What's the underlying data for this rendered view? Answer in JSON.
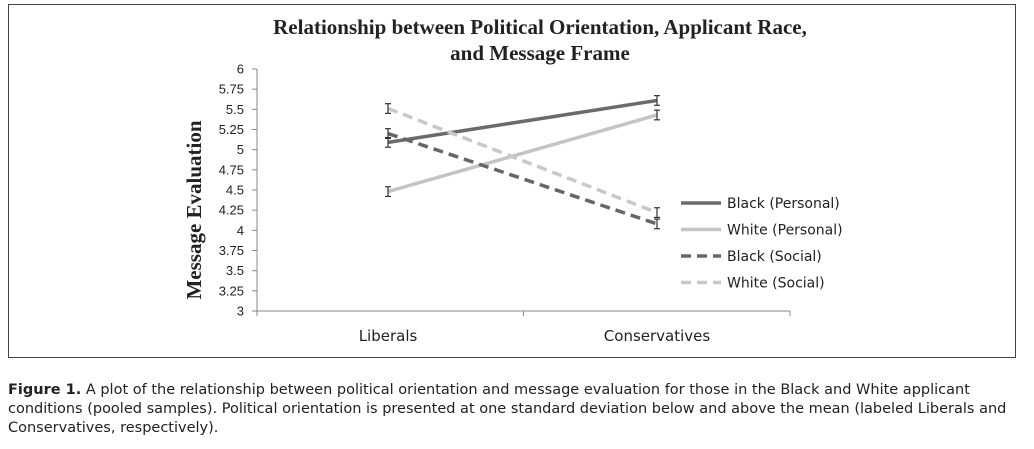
{
  "chart_data": {
    "type": "line",
    "title_lines": [
      "Relationship between Political Orientation, Applicant Race,",
      "and Message Frame"
    ],
    "ylabel": "Message Evaluation",
    "xlabel": "",
    "categories": [
      "Liberals",
      "Conservatives"
    ],
    "ylim": [
      3,
      6
    ],
    "yticks": [
      "3",
      "3.25",
      "3.5",
      "3.75",
      "4",
      "4.25",
      "4.5",
      "4.75",
      "5",
      "5.25",
      "5.5",
      "5.75",
      "6"
    ],
    "grid": false,
    "legend_position": "right",
    "series": [
      {
        "name": "Black (Personal)",
        "values": [
          5.09,
          5.61
        ],
        "errors": [
          0.06,
          0.06
        ],
        "color": "#6b6b6b",
        "dashed": false
      },
      {
        "name": "White (Personal)",
        "values": [
          4.48,
          5.43
        ],
        "errors": [
          0.06,
          0.06
        ],
        "color": "#c4c4c4",
        "dashed": false
      },
      {
        "name": "Black (Social)",
        "values": [
          5.2,
          4.08
        ],
        "errors": [
          0.06,
          0.06
        ],
        "color": "#666666",
        "dashed": true
      },
      {
        "name": "White (Social)",
        "values": [
          5.51,
          4.22
        ],
        "errors": [
          0.06,
          0.06
        ],
        "color": "#c8c8c8",
        "dashed": true
      }
    ]
  },
  "caption": {
    "figure_label": "Figure 1.",
    "text": " A plot of the relationship between political orientation and message evaluation for those in the Black and White applicant conditions (pooled samples). Political orientation is presented at one standard deviation below and above the mean (labeled Liberals and Conservatives, respectively)."
  }
}
